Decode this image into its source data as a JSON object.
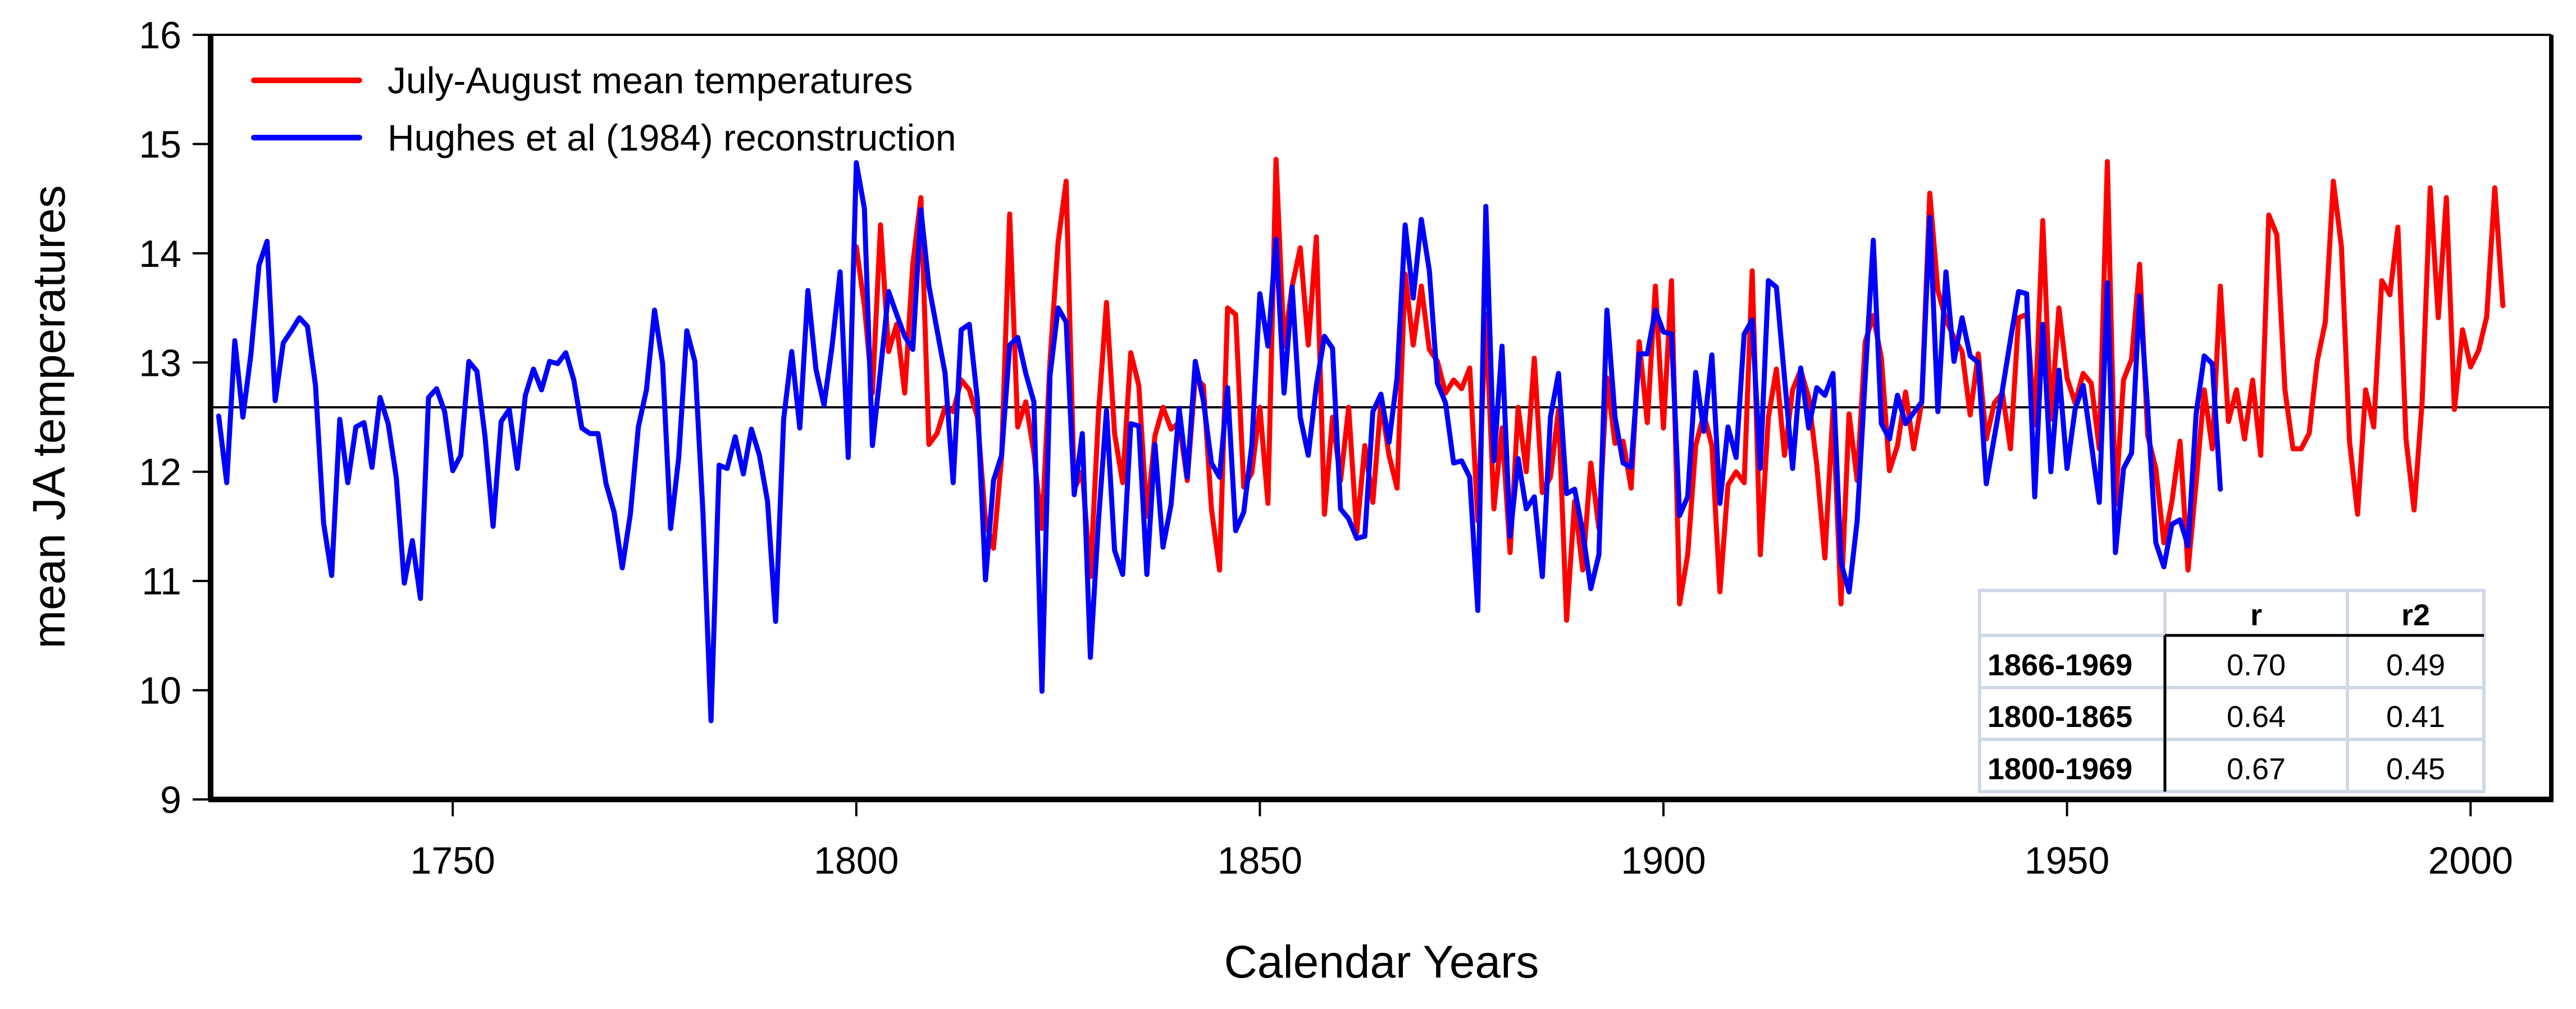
{
  "chart_data": {
    "type": "line",
    "title": "",
    "xlabel": "Calendar Years",
    "ylabel": "mean JA temperatures",
    "xlim": [
      1720,
      2010
    ],
    "ylim": [
      9,
      16
    ],
    "x_ticks": [
      1750,
      1800,
      1850,
      1900,
      1950,
      2000
    ],
    "y_ticks": [
      9,
      10,
      11,
      12,
      13,
      14,
      15,
      16
    ],
    "grid": false,
    "reference_line": 12.59,
    "legend_position": "top-left",
    "series": [
      {
        "name": "July-August mean temperatures",
        "color": "#ff0000",
        "start_year": 1800,
        "values": [
          14.06,
          13.52,
          12.72,
          14.26,
          13.1,
          13.35,
          12.72,
          13.9,
          14.51,
          12.25,
          12.35,
          12.59,
          12.55,
          12.84,
          12.75,
          12.5,
          11.55,
          11.3,
          12.13,
          14.36,
          12.41,
          12.64,
          12.17,
          11.48,
          13.01,
          14.1,
          14.66,
          11.84,
          12.0,
          11.04,
          12.53,
          13.55,
          12.35,
          11.9,
          13.09,
          12.79,
          11.59,
          12.33,
          12.59,
          12.39,
          12.45,
          11.92,
          12.86,
          12.79,
          11.66,
          11.1,
          13.5,
          13.44,
          11.86,
          11.99,
          12.59,
          11.71,
          14.86,
          13.15,
          13.7,
          14.05,
          13.16,
          14.15,
          11.61,
          12.5,
          11.92,
          12.59,
          11.44,
          12.24,
          11.72,
          12.64,
          12.15,
          11.85,
          13.81,
          13.16,
          13.7,
          13.12,
          13.01,
          12.72,
          12.84,
          12.76,
          12.95,
          11.55,
          13.44,
          11.66,
          12.4,
          11.26,
          12.59,
          12.0,
          13.04,
          11.81,
          11.95,
          12.57,
          10.64,
          11.73,
          11.1,
          12.08,
          11.48,
          12.86,
          12.26,
          12.28,
          11.85,
          13.19,
          12.45,
          13.7,
          12.4,
          13.75,
          10.79,
          11.24,
          12.24,
          12.53,
          12.24,
          10.9,
          11.88,
          12.0,
          11.9,
          13.84,
          11.24,
          12.5,
          12.94,
          12.15,
          12.75,
          12.93,
          12.68,
          12.06,
          11.21,
          12.57,
          10.79,
          12.53,
          11.92,
          13.19,
          13.43,
          13.04,
          12.01,
          12.24,
          12.73,
          12.21,
          12.64,
          14.55,
          13.66,
          13.39,
          13.23,
          13.1,
          12.52,
          13.08,
          12.3,
          12.63,
          12.72,
          12.21,
          13.41,
          13.44,
          12.43,
          14.3,
          12.48,
          13.5,
          12.86,
          12.63,
          12.9,
          12.81,
          12.21,
          14.84,
          11.7,
          12.84,
          13.03,
          13.9,
          12.33,
          12.03,
          11.35,
          11.73,
          12.28,
          11.1,
          11.9,
          12.75,
          12.21,
          13.7,
          12.46,
          12.75,
          12.3,
          12.84,
          12.15,
          14.35,
          14.17,
          12.75,
          12.21,
          12.21,
          12.35,
          13.01,
          13.37,
          14.66,
          14.06,
          12.28,
          11.61,
          12.75,
          12.41,
          13.75,
          13.62,
          14.24,
          12.3,
          11.65,
          12.64,
          14.6,
          13.41,
          14.51,
          12.57,
          13.3,
          12.96,
          13.11,
          13.42,
          14.6,
          13.52
        ]
      },
      {
        "name": "Hughes et al (1984) reconstruction",
        "color": "#0000ff",
        "start_year": 1721,
        "values": [
          12.51,
          11.9,
          13.2,
          12.5,
          13.08,
          13.89,
          14.11,
          12.65,
          13.18,
          13.29,
          13.41,
          13.33,
          12.79,
          11.53,
          11.05,
          12.48,
          11.9,
          12.41,
          12.45,
          12.04,
          12.68,
          12.44,
          11.95,
          10.98,
          11.37,
          10.84,
          12.68,
          12.76,
          12.55,
          12.01,
          12.15,
          13.01,
          12.92,
          12.32,
          11.5,
          12.46,
          12.57,
          12.03,
          12.7,
          12.94,
          12.75,
          13.01,
          12.99,
          13.09,
          12.84,
          12.4,
          12.35,
          12.35,
          11.89,
          11.63,
          11.12,
          11.61,
          12.41,
          12.75,
          13.48,
          12.99,
          11.48,
          12.13,
          13.29,
          13.01,
          11.63,
          9.72,
          12.06,
          12.03,
          12.32,
          11.98,
          12.39,
          12.15,
          11.73,
          10.63,
          12.48,
          13.1,
          12.4,
          13.66,
          12.94,
          12.61,
          13.15,
          13.83,
          12.13,
          14.83,
          14.41,
          12.24,
          12.93,
          13.65,
          13.44,
          13.24,
          13.12,
          14.4,
          13.7,
          13.3,
          12.9,
          11.9,
          13.3,
          13.35,
          12.66,
          11.01,
          11.92,
          12.15,
          13.16,
          13.23,
          12.9,
          12.64,
          9.99,
          12.88,
          13.5,
          13.37,
          11.79,
          12.35,
          10.3,
          11.55,
          12.56,
          11.28,
          11.06,
          12.44,
          12.42,
          11.06,
          12.25,
          11.31,
          11.7,
          12.58,
          11.95,
          13.01,
          12.65,
          12.08,
          11.95,
          12.77,
          11.46,
          11.63,
          12.24,
          13.63,
          13.15,
          14.13,
          12.72,
          13.69,
          12.5,
          12.15,
          12.79,
          13.24,
          13.13,
          11.66,
          11.57,
          11.39,
          11.41,
          12.55,
          12.71,
          12.27,
          12.86,
          14.26,
          13.59,
          14.31,
          13.84,
          12.81,
          12.63,
          12.08,
          12.1,
          11.95,
          10.73,
          14.43,
          12.1,
          13.15,
          11.41,
          12.12,
          11.66,
          11.77,
          11.04,
          12.5,
          12.9,
          11.8,
          11.84,
          11.45,
          10.93,
          11.24,
          13.48,
          12.5,
          12.08,
          12.04,
          13.08,
          13.08,
          13.48,
          13.28,
          13.26,
          11.6,
          11.77,
          12.91,
          12.37,
          13.07,
          11.71,
          12.41,
          12.13,
          13.26,
          13.39,
          12.03,
          13.75,
          13.69,
          12.86,
          12.03,
          12.95,
          12.4,
          12.77,
          12.7,
          12.9,
          11.17,
          10.9,
          11.55,
          12.86,
          14.12,
          12.44,
          12.3,
          12.7,
          12.44,
          12.54,
          12.64,
          14.33,
          12.55,
          13.83,
          13.01,
          13.41,
          13.06,
          13.0,
          11.89,
          12.32,
          12.75,
          13.21,
          13.65,
          13.63,
          11.77,
          13.35,
          12.0,
          12.93,
          12.03,
          12.57,
          12.79,
          12.26,
          11.72,
          13.73,
          11.26,
          12.03,
          12.17,
          13.61,
          12.57,
          11.35,
          11.13,
          11.52,
          11.56,
          11.32,
          12.53,
          13.06,
          12.99,
          11.84
        ]
      }
    ],
    "table": {
      "headers": [
        "",
        "r",
        "r2"
      ],
      "rows": [
        {
          "period": "1866-1969",
          "r": "0.70",
          "r2": "0.49"
        },
        {
          "period": "1800-1865",
          "r": "0.64",
          "r2": "0.41"
        },
        {
          "period": "1800-1969",
          "r": "0.67",
          "r2": "0.45"
        }
      ]
    }
  }
}
